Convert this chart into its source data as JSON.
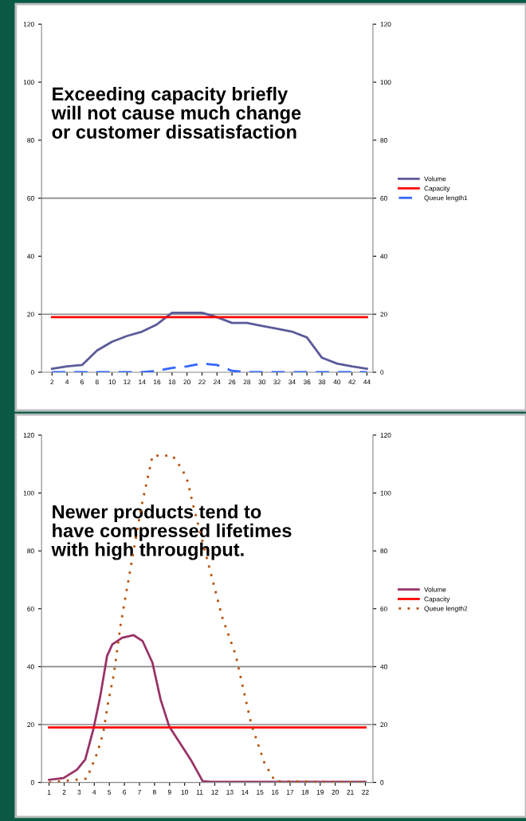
{
  "chart_data": [
    {
      "type": "line",
      "categories": [
        "2",
        "4",
        "6",
        "8",
        "10",
        "12",
        "14",
        "16",
        "18",
        "20",
        "22",
        "24",
        "26",
        "28",
        "30",
        "32",
        "34",
        "36",
        "38",
        "40",
        "42",
        "44"
      ],
      "series": [
        {
          "name": "Volume",
          "color": "#5a5a9a",
          "line_style": "solid",
          "values": [
            1.2,
            2,
            2.5,
            7.5,
            10.5,
            12.5,
            14,
            16.5,
            20.5,
            20.5,
            20.5,
            19,
            17,
            17,
            16,
            15,
            14,
            12,
            5,
            3,
            2,
            1.2
          ]
        },
        {
          "name": "Capacity",
          "color": "#ff0000",
          "line_style": "solid",
          "values": [
            19,
            19,
            19,
            19,
            19,
            19,
            19,
            19,
            19,
            19,
            19,
            19,
            19,
            19,
            19,
            19,
            19,
            19,
            19,
            19,
            19,
            19
          ]
        },
        {
          "name": "Queue length1",
          "color": "#3366ff",
          "line_style": "dashed",
          "axis": "y2",
          "values": [
            0,
            0,
            0,
            0,
            0,
            0,
            0,
            0.5,
            1.5,
            2,
            3,
            2.5,
            0.5,
            0,
            0,
            0,
            0,
            0,
            0,
            0,
            0,
            0
          ]
        }
      ],
      "ylim": [
        0,
        120
      ],
      "yticks": [
        0,
        20,
        40,
        60,
        80,
        100,
        120
      ],
      "y2lim": [
        0,
        120
      ],
      "y2ticks": [
        0,
        20,
        40,
        60,
        80,
        100,
        120
      ],
      "ref_lines": [
        {
          "axis": "y",
          "value": 20,
          "color": "#888888"
        },
        {
          "axis": "y",
          "value": 60,
          "color": "#888888"
        }
      ],
      "legend": "right",
      "annotations": [
        "Exceeding capacity briefly\nwill not cause much change\nor customer dissatisfaction"
      ]
    },
    {
      "type": "line",
      "series": [
        {
          "name": "Volume",
          "color": "#993366",
          "line_style": "solid",
          "x": [
            1,
            1.96,
            2.85,
            3.4,
            3.96,
            4.4,
            4.85,
            5.2,
            5.85,
            6.6,
            7.2,
            7.86,
            8.4,
            8.97,
            9.75,
            10.4,
            11.2,
            11.76,
            22
          ],
          "values": [
            0.9,
            1.5,
            4.4,
            7.9,
            18.8,
            29.8,
            43.7,
            47.7,
            50,
            50.9,
            48.9,
            41.4,
            28.7,
            19.4,
            13.1,
            7.9,
            0.4,
            0.2,
            0.2
          ]
        },
        {
          "name": "Capacity",
          "color": "#ff0000",
          "line_style": "solid",
          "x": [
            1,
            22
          ],
          "values": [
            19,
            19
          ]
        },
        {
          "name": "Queue length2",
          "color": "#b8500a",
          "line_style": "dotted",
          "axis": "y2",
          "x": [
            1,
            3.5,
            4.2,
            4.6,
            4.9,
            5.3,
            5.74,
            7.13,
            7.87,
            9.2,
            9.86,
            10.2,
            10.6,
            12.5,
            13.4,
            13.97,
            14.43,
            15.3,
            16,
            22
          ],
          "values": [
            0,
            1.3,
            10.2,
            17.2,
            27,
            37.4,
            54.2,
            95.4,
            112.9,
            112.9,
            108,
            104,
            95,
            57,
            43.8,
            30.5,
            20,
            6.7,
            0.4,
            0
          ]
        }
      ],
      "xlim": [
        0.5,
        22.5
      ],
      "xticks": [
        1,
        2,
        3,
        4,
        5,
        6,
        7,
        8,
        9,
        10,
        11,
        12,
        13,
        14,
        15,
        16,
        17,
        18,
        19,
        20,
        21,
        22
      ],
      "ylim": [
        0,
        120
      ],
      "yticks": [
        0,
        20,
        40,
        60,
        80,
        100,
        120
      ],
      "y2lim": [
        0,
        120
      ],
      "y2ticks": [
        0,
        20,
        40,
        60,
        80,
        100,
        120
      ],
      "ref_lines": [
        {
          "axis": "y",
          "value": 20,
          "color": "#888888"
        },
        {
          "axis": "y",
          "value": 40,
          "color": "#888888"
        }
      ],
      "legend": "right",
      "annotations": [
        "Newer products tend to\nhave compressed lifetimes\nwith high throughput."
      ]
    }
  ]
}
